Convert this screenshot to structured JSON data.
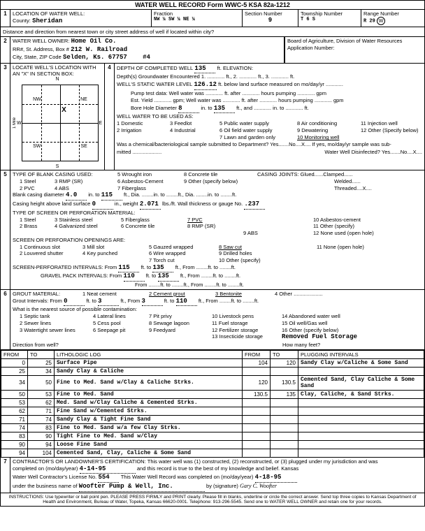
{
  "header": "WATER WELL RECORD    Form WWC-5    KSA 82a-1212",
  "s1": {
    "title": "LOCATION OF WATER WELL:",
    "county_lbl": "County:",
    "county": "Sheridan",
    "fraction_lbl": "Fraction",
    "fraction": "NW  ¼   SW  ¼   NE  ¼",
    "section_lbl": "Section Number",
    "section": "9",
    "township_lbl": "Township Number",
    "township": "T   6   S",
    "range_lbl": "Range Number",
    "range": "R  29",
    "range_dir": "E/W",
    "dist": "Distance and direction from nearest town or city street address of well if located within city?"
  },
  "s2": {
    "title": "WATER WELL OWNER:",
    "owner": "Home Oil Co.",
    "addr_lbl": "RR#, St. Address, Box #",
    "addr": "212 W. Railroad",
    "csz_lbl": "City, State, ZIP Code",
    "csz": "Selden, Ks. 67757",
    "board": "Board of Agriculture, Division of Water Resources",
    "app_lbl": "Application Number:",
    "well_num": "#4"
  },
  "s3": {
    "title": "LOCATE WELL'S LOCATION WITH AN \"X\" IN SECTION BOX:",
    "n": "N",
    "s": "S",
    "e": "E",
    "w": "W",
    "nw": "NW",
    "ne": "NE",
    "sw": "SW",
    "se": "SE",
    "mile": "1 Mile"
  },
  "s4": {
    "title": "DEPTH OF COMPLETED WELL",
    "depth": "135",
    "elev": "ft. ELEVATION:",
    "gw": "Depth(s) Groundwater Encountered   1. ............ ft., 2. ............ ft., 3. ............ ft.",
    "static_lbl": "WELL'S STATIC WATER LEVEL",
    "static": "126.12",
    "static_sfx": "ft. below land surface measured on mo/day/yr ............",
    "pump": "Pump test data:  Well water was ............ ft. after ............ hours pumping ............ gpm",
    "est": "Est. Yield ............ gpm;  Well water was ............ ft. after ............ hours pumping ............ gpm",
    "bore_lbl": "Bore Hole Diameter",
    "bore1": "8",
    "bore_sfx": "in. to",
    "bore2": "135",
    "bore_sfx2": "ft., and ............ in. to ............ ft.",
    "use_lbl": "WELL WATER TO BE USED AS:",
    "uses": "1 Domestic   3 Feedlot   5 Public water supply   8 Air conditioning   11 Injection well\n2 Irrigation   4 Industrial   6 Oil field water supply   9 Dewatering   12 Other (Specify below)\n                           7 Lawn and garden only   10 Monitoring well",
    "use1": "1 Domestic",
    "use2": "2 Irrigation",
    "use3": "3 Feedlot",
    "use4": "4 Industrial",
    "use5": "5 Public water supply",
    "use6": "6 Oil field water supply",
    "use7": "7 Lawn and garden only",
    "use8": "8 Air conditioning",
    "use9": "9 Dewatering",
    "use10": "10 Monitoring well",
    "use11": "11 Injection well",
    "use12": "12 Other (Specify below)",
    "chem": "Was a chemical/bacteriological sample submitted to Department? Yes.......No....X.... If yes, mo/day/yr sample was sub-",
    "mitted": "mitted ....................",
    "disinf": "Water Well Disinfected? Yes.......No....X...."
  },
  "s5": {
    "title": "TYPE OF BLANK CASING USED:",
    "c1": "1 Steel",
    "c2": "2 PVC",
    "c3": "3 RMP (SR)",
    "c4": "4 ABS",
    "c5": "5 Wrought iron",
    "c6": "6 Asbestos-Cement",
    "c7": "7 Fiberglass",
    "c8": "8 Concrete tile",
    "c9": "9 Other (specify below)",
    "joints": "CASING JOINTS: Glued......Clamped......",
    "welded": "Welded......",
    "threaded": "Threaded....X....",
    "bcd_lbl": "Blank casing diameter",
    "bcd": "4.0",
    "bcd_to": "in. to",
    "bcd2": "115",
    "bcd_sfx": "ft., Dia. ........in. to ........ft., Dia. ........in. to ........ft.",
    "cht_lbl": "Casing height above land surface",
    "cht": "0",
    "cht_sfx": "in., weight",
    "cht_w": "2.071",
    "cht_sfx2": "lbs./ft. Wall thickness or gauge No.",
    "cht_g": ".237",
    "screen_lbl": "TYPE OF SCREEN OR PERFORATION MATERIAL:",
    "sc1": "1 Steel",
    "sc2": "2 Brass",
    "sc3": "3 Stainless steel",
    "sc4": "4 Galvanized steel",
    "sc5": "5 Fiberglass",
    "sc6": "6 Concrete tile",
    "sc7": "7 PVC",
    "sc8": "8 RMP (SR)",
    "sc9": "9 ABS",
    "sc10": "10 Asbestos-cement",
    "sc11": "11 Other (specify)",
    "sc12": "12 None used (open hole)",
    "open_lbl": "SCREEN OR PERFORATION OPENINGS ARE:",
    "o1": "1 Continuous slot",
    "o2": "2 Louvered shutter",
    "o3": "3 Mill slot",
    "o4": "4 Key punched",
    "o5": "5 Gauzed wrapped",
    "o6": "6 Wire wrapped",
    "o7": "7 Torch cut",
    "o8": "8 Saw cut",
    "o9": "9 Drilled holes",
    "o10": "10 Other (specify)",
    "o11": "11 None (open hole)",
    "spi_lbl": "SCREEN-PERFORATED INTERVALS:  From",
    "spi1": "115",
    "spi_to": "ft. to",
    "spi2": "135",
    "spi_sfx": "ft., From ........ft. to ........ft.",
    "gpi_lbl": "GRAVEL PACK INTERVALS:        From",
    "gpi1": "110",
    "gpi_to": "ft. to",
    "gpi2": "135",
    "gpi_sfx": "ft., From ........ft. to ........ft.",
    "gpi_lbl2": "From ........ft. to ........ft., From ........ft. to ........ft."
  },
  "s6": {
    "title": "GROUT MATERIAL:",
    "g1": "1 Neat cement",
    "g2": "2 Cement grout",
    "g3": "3 Bentonite",
    "g4": "4 Other ....................",
    "gi": "Grout Intervals:   From",
    "gi1": "0",
    "gi_to": "ft. to",
    "gi2": "3",
    "gi_from": "ft., From",
    "gi3": "3",
    "gi_to2": "ft. to",
    "gi4": "110",
    "gi_sfx": "ft., From ........ft. to ........ft.",
    "contam": "What is the nearest source of possible contamination:",
    "p1": "1 Septic tank",
    "p2": "2 Sewer lines",
    "p3": "3 Watertight sewer lines",
    "p4": "4 Lateral lines",
    "p5": "5 Cess pool",
    "p6": "6 Seepage pit",
    "p7": "7 Pit privy",
    "p8": "8 Sewage lagoon",
    "p9": "9 Feedyard",
    "p10": "10 Livestock pens",
    "p11": "11 Fuel storage",
    "p12": "12 Fertilizer storage",
    "p13": "13 Insecticide storage",
    "p14": "14 Abandoned water well",
    "p15": "15 Oil well/Gas well",
    "p16": "16 Other (specify below)",
    "removed": "Removed Fuel Storage",
    "dir": "Direction from well?",
    "feet": "How many feet?"
  },
  "log": {
    "h1": "FROM",
    "h2": "TO",
    "h3": "LITHOLOGIC LOG",
    "h4": "FROM",
    "h5": "TO",
    "h6": "PLUGGING INTERVALS",
    "rows": [
      [
        "0",
        "25",
        "Surface Pipe",
        "104",
        "120",
        "Sandy Clay w/Caliche & Some Sand"
      ],
      [
        "25",
        "34",
        "Sandy Clay & Caliche",
        "",
        "",
        ""
      ],
      [
        "34",
        "50",
        "Fine to Med. Sand w/Clay & Caliche Strks.",
        "120",
        "130.5",
        "Cemented Sand, Clay Caliche & Some Sand"
      ],
      [
        "50",
        "53",
        "Fine to Med. Sand",
        "130.5",
        "135",
        "Clay, Caliche, & Sand Strks."
      ],
      [
        "53",
        "62",
        "Med. Sand w/Clay Caliche & Cemented Strks.",
        "",
        "",
        ""
      ],
      [
        "62",
        "71",
        "Fine Sand w/Cemented Strks.",
        "",
        "",
        ""
      ],
      [
        "71",
        "74",
        "Sandy Clay & Tight Fine Sand",
        "",
        "",
        ""
      ],
      [
        "74",
        "83",
        "Fine to Med. Sand w/a few Clay Strks.",
        "",
        "",
        ""
      ],
      [
        "83",
        "90",
        "Tight Fine to Med. Sand w/Clay",
        "",
        "",
        ""
      ],
      [
        "90",
        "94",
        "Loose Fine Sand",
        "",
        "",
        ""
      ],
      [
        "94",
        "104",
        "Cemented Sand, Clay, Caliche & Some Sand",
        "",
        "",
        ""
      ]
    ]
  },
  "s7": {
    "text": "CONTRACTOR'S OR LANDOWNER'S CERTIFICATION: This water well was (1) constructed, (2) reconstructed, or (3) plugged under my jurisdiction and was",
    "comp_lbl": "completed on (mo/day/year)",
    "comp": "4-14-95",
    "comp_sfx": "and this record is true to the best of my knowledge and belief. Kansas",
    "lic_lbl": "Water Well Contractor's License No.",
    "lic": "554",
    "lic_sfx": "This Water Well Record was completed on (mo/day/year)",
    "comp2": "4-18-95",
    "bus_lbl": "under the business name of",
    "bus": "Woofter Pump & Well, Inc.",
    "sig": "by (signature)"
  },
  "instr": "INSTRUCTIONS: Use typewriter or ball point pen. PLEASE PRESS FIRMLY and PRINT clearly. Please fill in blanks, underline or circle the correct answer. Send top three copies to Kansas Department of Health and Environment, Bureau of Water, Topeka, Kansas 66620-0001. Telephone: 913-296-5545. Send one to WATER WELL OWNER and retain one for your records."
}
